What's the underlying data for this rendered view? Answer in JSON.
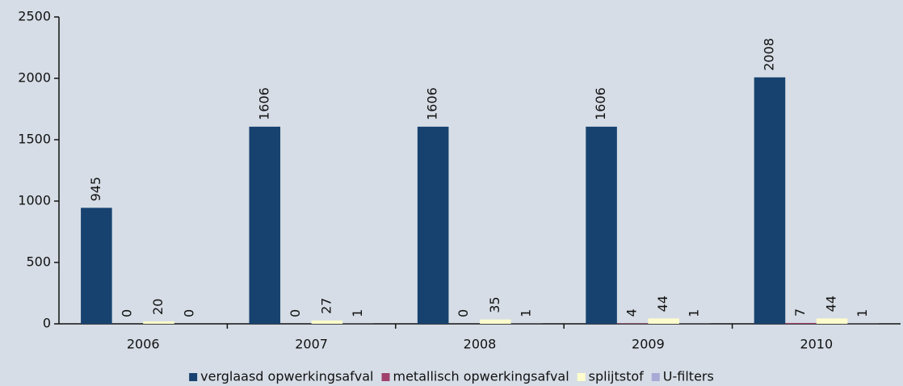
{
  "chart_data": {
    "type": "bar",
    "categories": [
      "2006",
      "2007",
      "2008",
      "2009",
      "2010"
    ],
    "series": [
      {
        "name": "verglaasd opwerkingsafval",
        "color": "#17426f",
        "values": [
          945,
          1606,
          1606,
          1606,
          2008
        ]
      },
      {
        "name": "metallisch opwerkingsafval",
        "color": "#a0406a",
        "values": [
          0,
          0,
          0,
          4,
          7
        ]
      },
      {
        "name": "splijtstof",
        "color": "#fcfccc",
        "values": [
          20,
          27,
          35,
          44,
          44
        ]
      },
      {
        "name": "U-filters",
        "color": "#a9a9d6",
        "values": [
          0,
          1,
          1,
          1,
          1
        ]
      }
    ],
    "ylim": [
      0,
      2500
    ],
    "yticks": [
      0,
      500,
      1000,
      1500,
      2000,
      2500
    ],
    "grid": false,
    "legend": "bottom"
  }
}
